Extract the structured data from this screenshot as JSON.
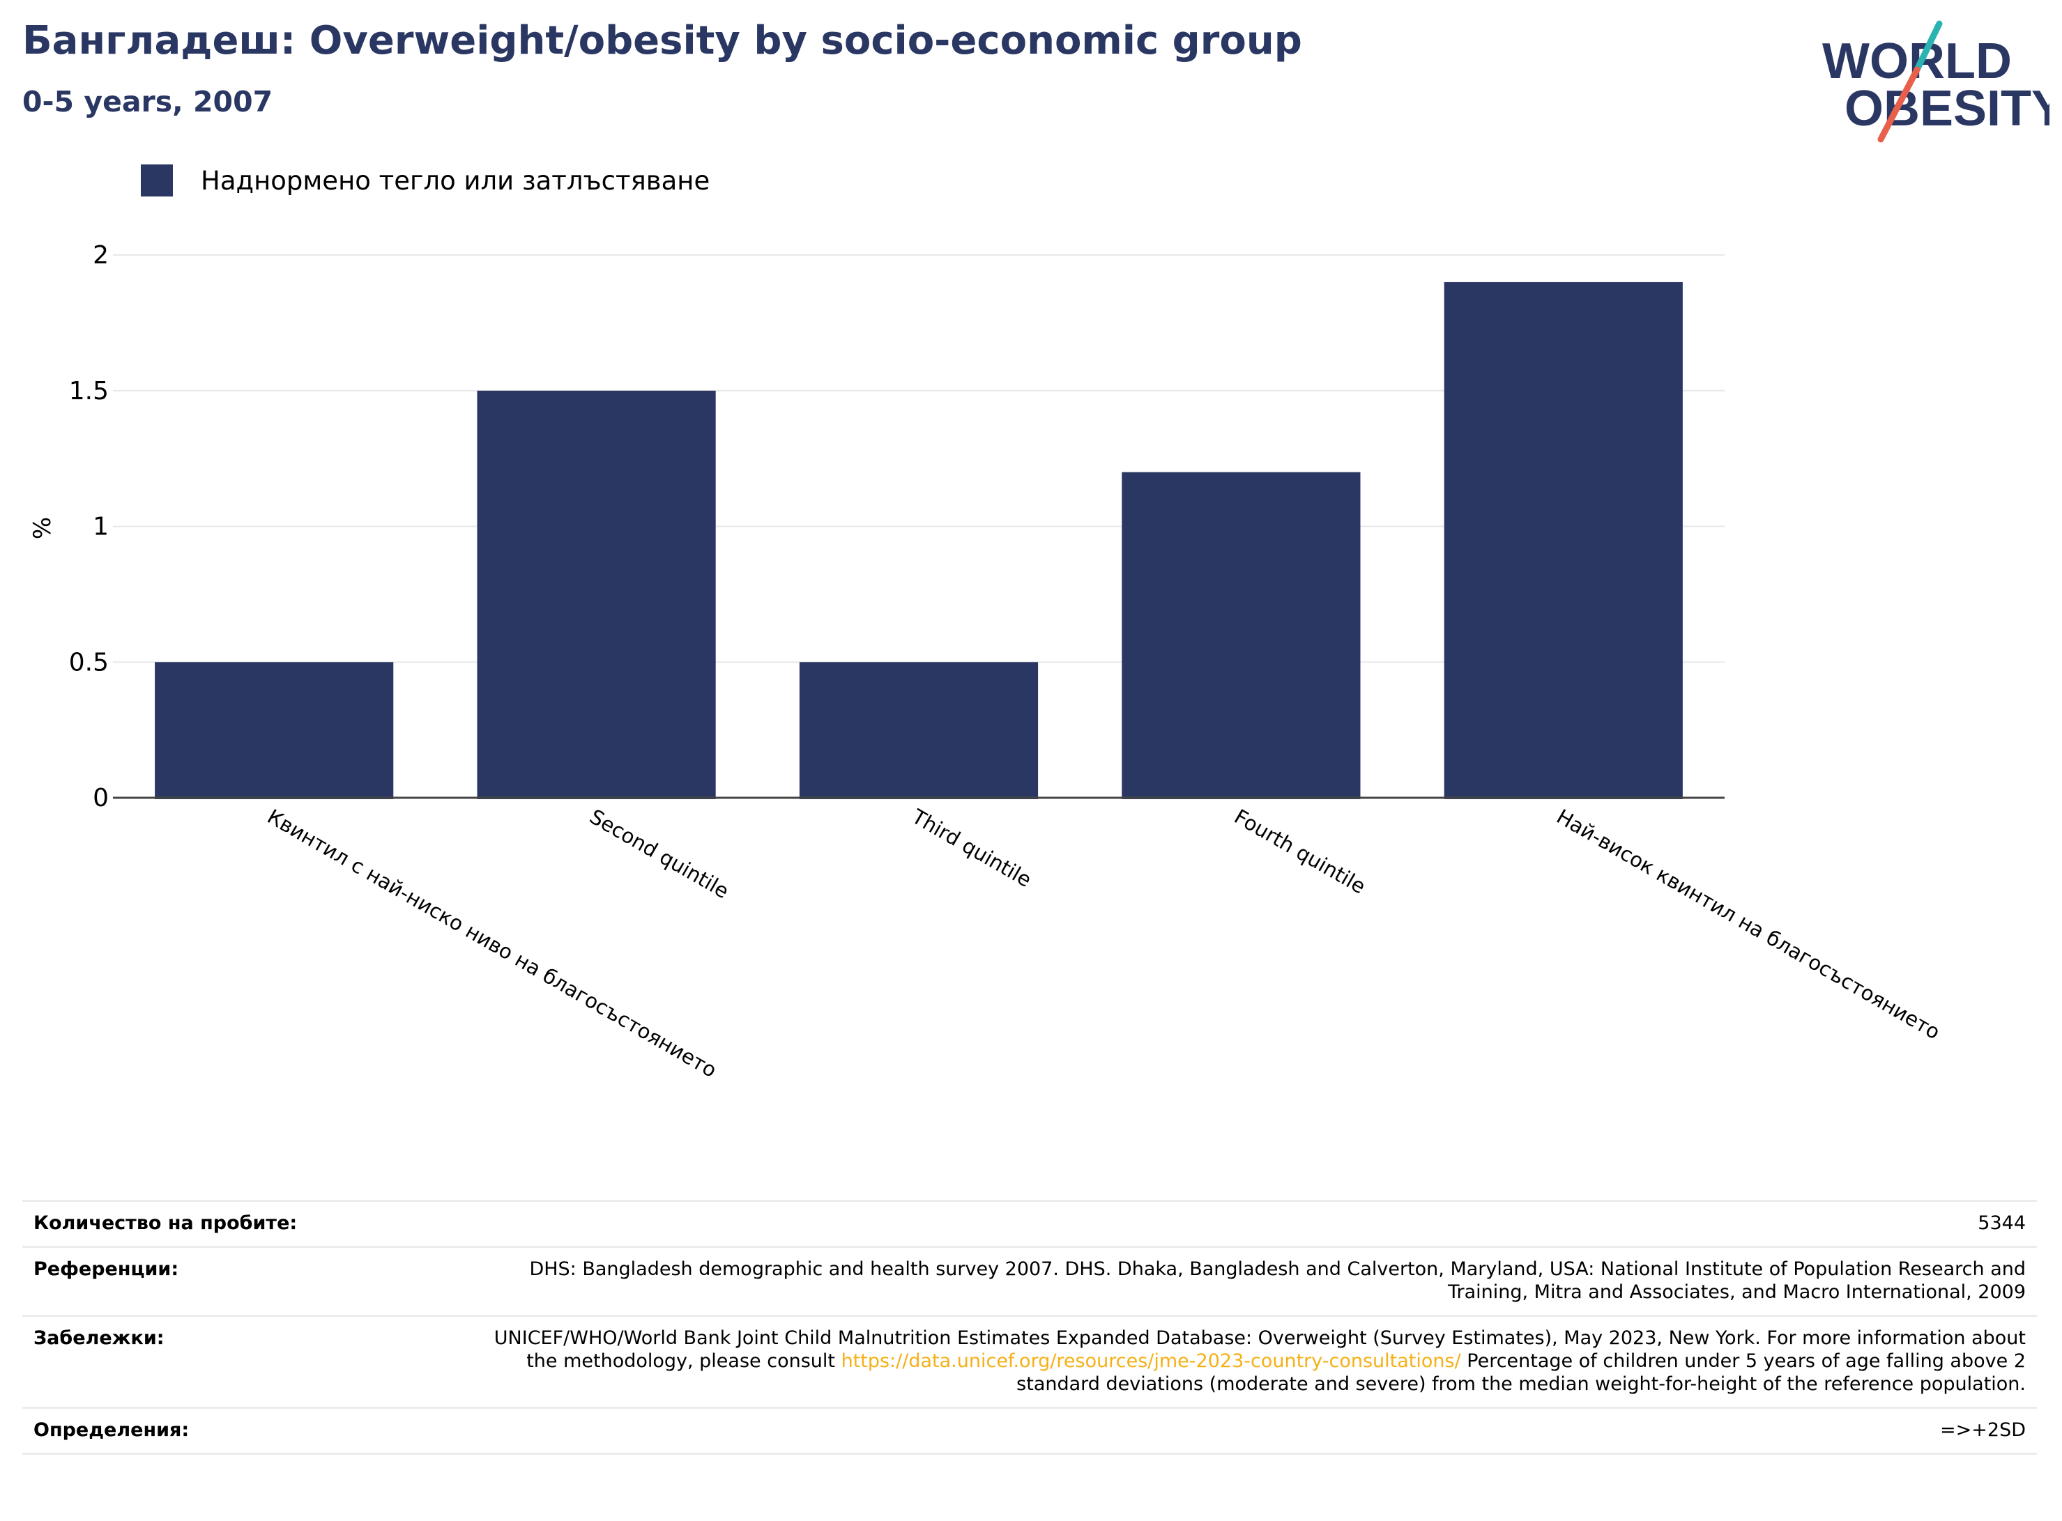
{
  "header": {
    "title": "Бангладеш: Overweight/obesity by socio-economic group",
    "subtitle": "0-5 years, 2007"
  },
  "logo": {
    "line1": "WORLD",
    "line2": "OBESITY",
    "accent_teal": "#2ab3b1",
    "accent_red": "#e8604c",
    "color": "#2a3763"
  },
  "legend": {
    "label": "Наднормено тегло или затлъстяване",
    "color": "#2a3763"
  },
  "chart_data": {
    "type": "bar",
    "categories": [
      "Квинтил с най-ниско ниво на благосъстоянието",
      "Second quintile",
      "Third quintile",
      "Fourth quintile",
      "Най-висок квинтил на благосъстоянието"
    ],
    "series": [
      {
        "name": "Наднормено тегло или затлъстяване",
        "values": [
          0.5,
          1.5,
          0.5,
          1.2,
          1.9
        ],
        "color": "#2a3763"
      }
    ],
    "ylabel": "%",
    "ylim": [
      0,
      2
    ],
    "yticks": [
      "0",
      "0.5",
      "1",
      "1.5",
      "2"
    ],
    "ytick_values": [
      0,
      0.5,
      1,
      1.5,
      2
    ],
    "grid": true,
    "legend_position": "top-left"
  },
  "info": {
    "rows": [
      {
        "label": "Количество на пробите:",
        "value": "5344"
      },
      {
        "label": "Референции:",
        "value": "DHS: Bangladesh demographic and health survey 2007. DHS. Dhaka, Bangladesh and Calverton, Maryland, USA: National Institute of Population Research and Training, Mitra and Associates, and Macro International, 2009"
      },
      {
        "label": "Забележки:",
        "value_before": "UNICEF/WHO/World Bank Joint Child Malnutrition Estimates Expanded Database: Overweight (Survey Estimates), May 2023, New York. For more information about the methodology, please consult ",
        "link": "https://data.unicef.org/resources/jme-2023-country-consultations/",
        "value_after": " Percentage of children under 5 years of age falling above 2 standard deviations (moderate and severe) from the median weight-for-height of the reference population."
      },
      {
        "label": "Определения:",
        "value": "=>+2SD"
      }
    ]
  }
}
